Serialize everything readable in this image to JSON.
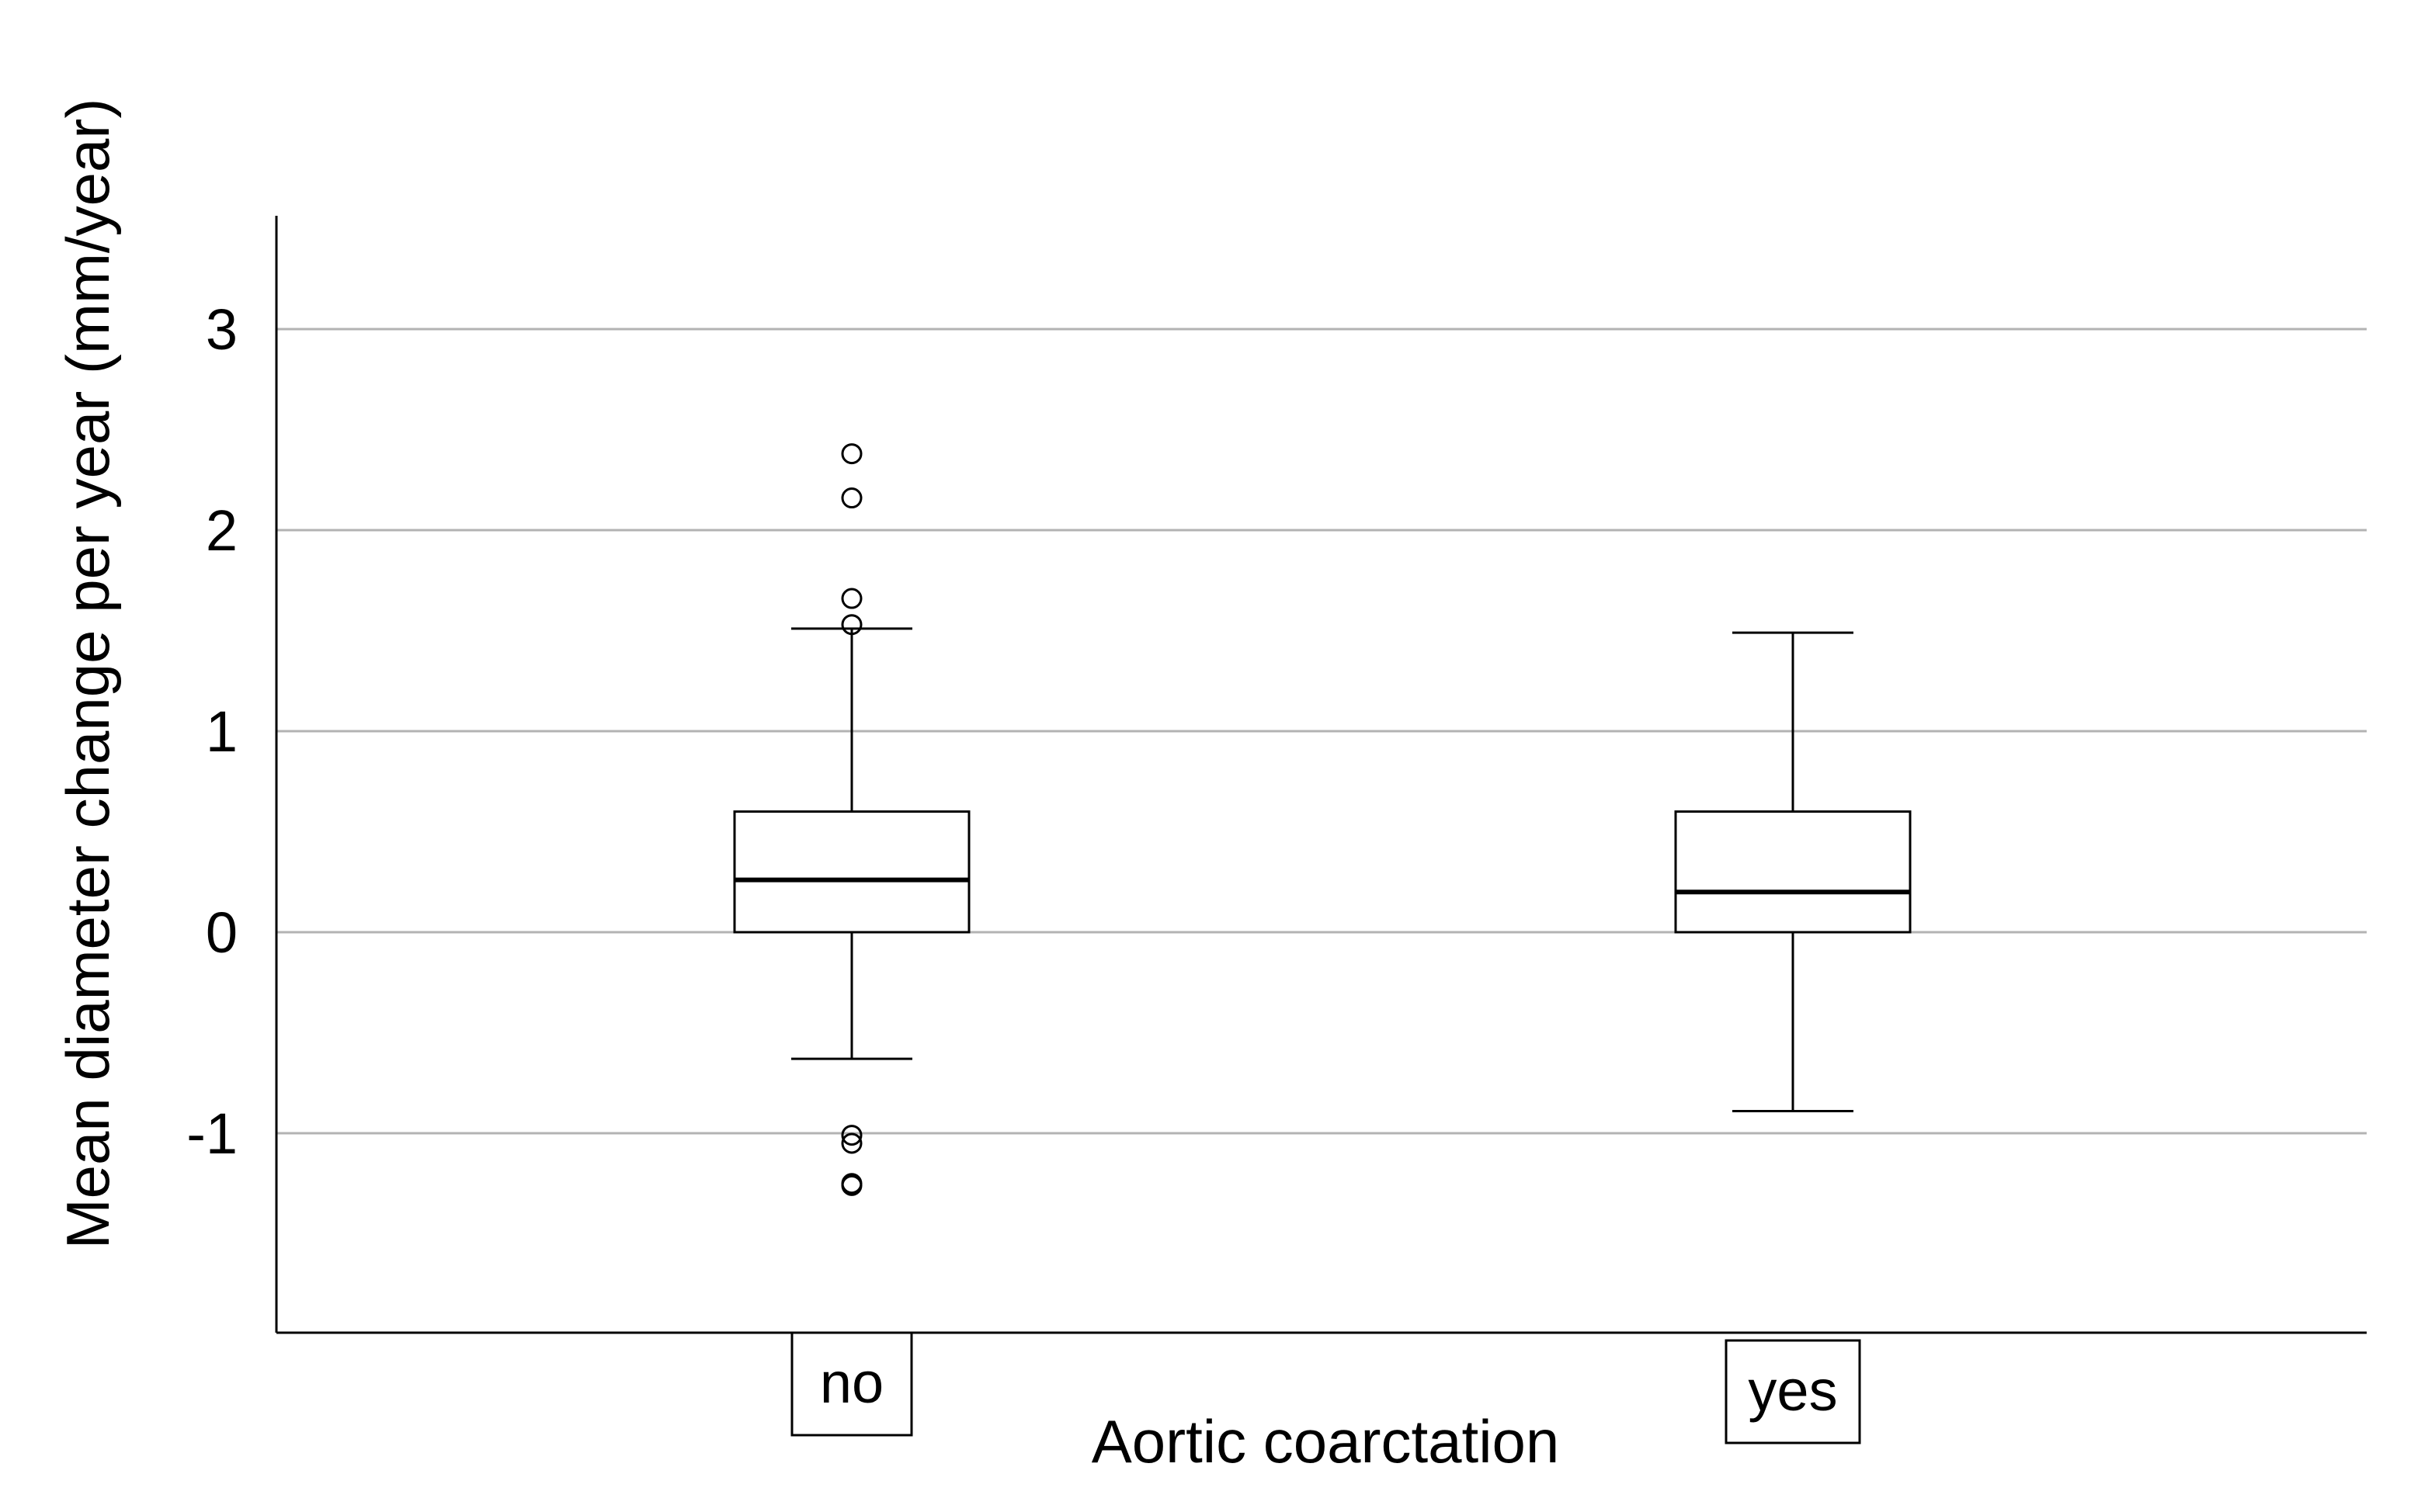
{
  "chart_data": {
    "type": "box",
    "xlabel": "Aortic coarctation",
    "ylabel": "Mean diameter change per year (mm/year)",
    "ylim": [
      -2.0,
      3.55
    ],
    "yticks": [
      -1,
      0,
      1,
      2,
      3
    ],
    "ytick_labels": [
      "-1",
      "0",
      "1",
      "2",
      "3"
    ],
    "grid": "horizontal",
    "categories": [
      "no",
      "yes"
    ],
    "boxes": [
      {
        "category": "no",
        "whisker_low": -0.63,
        "q1": 0.0,
        "median": 0.26,
        "q3": 0.6,
        "whisker_high": 1.51,
        "outliers": [
          2.38,
          2.16,
          1.66,
          1.53,
          -1.01,
          -1.05,
          -1.25,
          -1.26
        ]
      },
      {
        "category": "yes",
        "whisker_low": -0.89,
        "q1": 0.0,
        "median": 0.2,
        "q3": 0.6,
        "whisker_high": 1.49,
        "outliers": []
      }
    ],
    "colors": {
      "gridline": "#b3b3b3",
      "axis": "#000000",
      "box_fill": "#ffffff",
      "box_stroke": "#000000"
    }
  }
}
